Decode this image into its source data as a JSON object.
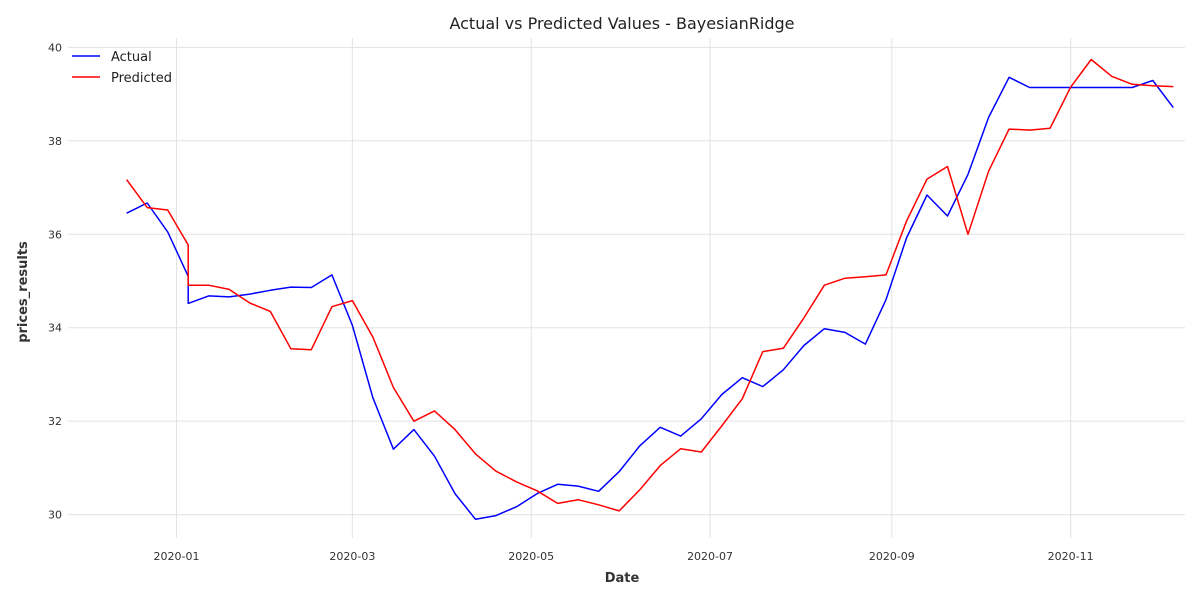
{
  "chart_data": {
    "type": "line",
    "title": "Actual vs Predicted Values - BayesianRidge",
    "xlabel": "Date",
    "ylabel": "prices_results",
    "ylim": [
      29.5,
      40.2
    ],
    "yticks": [
      30,
      32,
      34,
      36,
      38,
      40
    ],
    "xlim": [
      "2019-11-25",
      "2020-12-10"
    ],
    "xticks": [
      "2020-01-01",
      "2020-03-01",
      "2020-05-01",
      "2020-07-01",
      "2020-09-01",
      "2020-11-01"
    ],
    "xtick_labels": [
      "2020-01",
      "2020-03",
      "2020-05",
      "2020-07",
      "2020-09",
      "2020-11"
    ],
    "grid": true,
    "legend": "top-left",
    "series": [
      {
        "name": "Actual",
        "color": "#0000ff",
        "points": [
          [
            "2019-12-15",
            36.45
          ],
          [
            "2019-12-22",
            36.67
          ],
          [
            "2019-12-29",
            36.05
          ],
          [
            "2020-01-05",
            35.1
          ],
          [
            "2020-01-05",
            34.52
          ],
          [
            "2020-01-12",
            34.68
          ],
          [
            "2020-01-19",
            34.66
          ],
          [
            "2020-01-26",
            34.72
          ],
          [
            "2020-02-02",
            34.8
          ],
          [
            "2020-02-09",
            34.87
          ],
          [
            "2020-02-16",
            34.86
          ],
          [
            "2020-02-23",
            35.13
          ],
          [
            "2020-03-01",
            34.05
          ],
          [
            "2020-03-08",
            32.5
          ],
          [
            "2020-03-15",
            31.4
          ],
          [
            "2020-03-22",
            31.82
          ],
          [
            "2020-03-29",
            31.25
          ],
          [
            "2020-04-05",
            30.45
          ],
          [
            "2020-04-12",
            29.9
          ],
          [
            "2020-04-19",
            29.98
          ],
          [
            "2020-04-26",
            30.17
          ],
          [
            "2020-05-03",
            30.45
          ],
          [
            "2020-05-10",
            30.65
          ],
          [
            "2020-05-17",
            30.61
          ],
          [
            "2020-05-24",
            30.5
          ],
          [
            "2020-05-31",
            30.92
          ],
          [
            "2020-06-07",
            31.47
          ],
          [
            "2020-06-14",
            31.87
          ],
          [
            "2020-06-21",
            31.68
          ],
          [
            "2020-06-28",
            32.05
          ],
          [
            "2020-07-05",
            32.57
          ],
          [
            "2020-07-12",
            32.93
          ],
          [
            "2020-07-19",
            32.74
          ],
          [
            "2020-07-26",
            33.1
          ],
          [
            "2020-08-02",
            33.62
          ],
          [
            "2020-08-09",
            33.98
          ],
          [
            "2020-08-16",
            33.9
          ],
          [
            "2020-08-23",
            33.65
          ],
          [
            "2020-08-30",
            34.6
          ],
          [
            "2020-09-06",
            35.92
          ],
          [
            "2020-09-13",
            36.84
          ],
          [
            "2020-09-20",
            36.39
          ],
          [
            "2020-09-27",
            37.28
          ],
          [
            "2020-10-04",
            38.5
          ],
          [
            "2020-10-11",
            39.36
          ],
          [
            "2020-10-18",
            39.14
          ],
          [
            "2020-10-25",
            39.14
          ],
          [
            "2020-11-01",
            39.14
          ],
          [
            "2020-11-08",
            39.14
          ],
          [
            "2020-11-15",
            39.14
          ],
          [
            "2020-11-22",
            39.14
          ],
          [
            "2020-11-29",
            39.29
          ],
          [
            "2020-12-06",
            38.71
          ]
        ]
      },
      {
        "name": "Predicted",
        "color": "#ff0000",
        "points": [
          [
            "2019-12-15",
            37.17
          ],
          [
            "2019-12-22",
            36.57
          ],
          [
            "2019-12-29",
            36.52
          ],
          [
            "2020-01-05",
            35.77
          ],
          [
            "2020-01-05",
            34.91
          ],
          [
            "2020-01-12",
            34.91
          ],
          [
            "2020-01-19",
            34.82
          ],
          [
            "2020-01-26",
            34.53
          ],
          [
            "2020-02-02",
            34.35
          ],
          [
            "2020-02-09",
            33.55
          ],
          [
            "2020-02-16",
            33.53
          ],
          [
            "2020-02-23",
            34.45
          ],
          [
            "2020-03-01",
            34.58
          ],
          [
            "2020-03-08",
            33.8
          ],
          [
            "2020-03-15",
            32.72
          ],
          [
            "2020-03-22",
            32.0
          ],
          [
            "2020-03-29",
            32.22
          ],
          [
            "2020-04-05",
            31.82
          ],
          [
            "2020-04-12",
            31.3
          ],
          [
            "2020-04-19",
            30.93
          ],
          [
            "2020-04-26",
            30.7
          ],
          [
            "2020-05-03",
            30.51
          ],
          [
            "2020-05-10",
            30.24
          ],
          [
            "2020-05-17",
            30.32
          ],
          [
            "2020-05-24",
            30.21
          ],
          [
            "2020-05-31",
            30.08
          ],
          [
            "2020-06-07",
            30.53
          ],
          [
            "2020-06-14",
            31.05
          ],
          [
            "2020-06-21",
            31.41
          ],
          [
            "2020-06-28",
            31.34
          ],
          [
            "2020-07-05",
            31.9
          ],
          [
            "2020-07-12",
            32.48
          ],
          [
            "2020-07-19",
            33.49
          ],
          [
            "2020-07-26",
            33.56
          ],
          [
            "2020-08-02",
            34.21
          ],
          [
            "2020-08-09",
            34.91
          ],
          [
            "2020-08-16",
            35.06
          ],
          [
            "2020-08-23",
            35.09
          ],
          [
            "2020-08-30",
            35.13
          ],
          [
            "2020-09-06",
            36.28
          ],
          [
            "2020-09-13",
            37.18
          ],
          [
            "2020-09-20",
            37.45
          ],
          [
            "2020-09-27",
            36.0
          ],
          [
            "2020-10-04",
            37.35
          ],
          [
            "2020-10-11",
            38.25
          ],
          [
            "2020-10-18",
            38.23
          ],
          [
            "2020-10-25",
            38.27
          ],
          [
            "2020-11-01",
            39.15
          ],
          [
            "2020-11-08",
            39.74
          ],
          [
            "2020-11-15",
            39.38
          ],
          [
            "2020-11-22",
            39.21
          ],
          [
            "2020-11-29",
            39.18
          ],
          [
            "2020-12-06",
            39.16
          ]
        ]
      }
    ]
  }
}
